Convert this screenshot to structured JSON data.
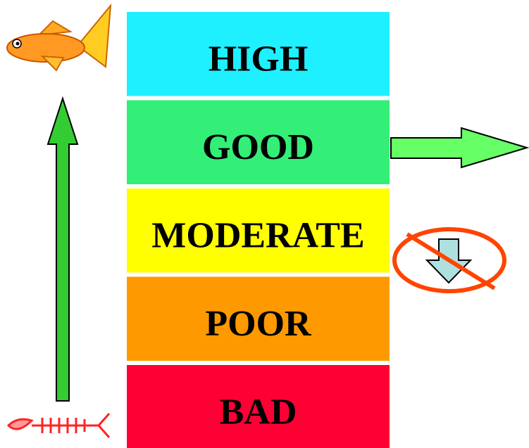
{
  "bands": [
    {
      "label": "HIGH",
      "color": "#1ff0ff"
    },
    {
      "label": "GOOD",
      "color": "#33ee77"
    },
    {
      "label": "MODERATE",
      "color": "#ffff00"
    },
    {
      "label": "POOR",
      "color": "#ff9900"
    },
    {
      "label": "BAD",
      "color": "#ff0035"
    }
  ]
}
